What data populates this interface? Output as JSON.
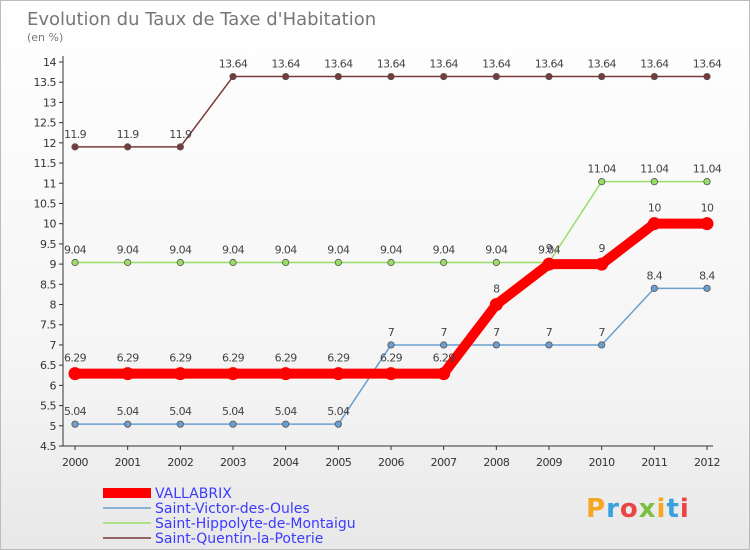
{
  "chart_data": {
    "type": "line",
    "title": "Evolution du Taux de Taxe d'Habitation",
    "subtitle": "(en %)",
    "x": [
      "2000",
      "2001",
      "2002",
      "2003",
      "2004",
      "2005",
      "2006",
      "2007",
      "2008",
      "2009",
      "2010",
      "2011",
      "2012"
    ],
    "ylim": [
      4.5,
      14
    ],
    "y_ticks": [
      "4.5",
      "5",
      "5.5",
      "6",
      "6.5",
      "7",
      "7.5",
      "8",
      "8.5",
      "9",
      "9.5",
      "10",
      "10.5",
      "11",
      "11.5",
      "12",
      "12.5",
      "13",
      "13.5",
      "14"
    ],
    "grid": false,
    "legend_position": "bottom-left",
    "series": [
      {
        "name": "VALLABRIX",
        "color": "#ff0000",
        "values": [
          6.29,
          6.29,
          6.29,
          6.29,
          6.29,
          6.29,
          6.29,
          6.29,
          8,
          9,
          9,
          10,
          10
        ],
        "labels": [
          "6.29",
          "6.29",
          "6.29",
          "6.29",
          "6.29",
          "6.29",
          "6.29",
          "6.29",
          "8",
          "9",
          "9",
          "10",
          "10"
        ]
      },
      {
        "name": "Saint-Victor-des-Oules",
        "color": "#6b9fd0",
        "values": [
          5.04,
          5.04,
          5.04,
          5.04,
          5.04,
          5.04,
          7,
          7,
          7,
          7,
          7,
          8.4,
          8.4
        ],
        "labels": [
          "5.04",
          "5.04",
          "5.04",
          "5.04",
          "5.04",
          "5.04",
          "7",
          "7",
          "7",
          "7",
          "7",
          "8.4",
          "8.4"
        ]
      },
      {
        "name": "Saint-Hippolyte-de-Montaigu",
        "color": "#99dd66",
        "values": [
          9.04,
          9.04,
          9.04,
          9.04,
          9.04,
          9.04,
          9.04,
          9.04,
          9.04,
          9.04,
          11.04,
          11.04,
          11.04
        ],
        "labels": [
          "9.04",
          "9.04",
          "9.04",
          "9.04",
          "9.04",
          "9.04",
          "9.04",
          "9.04",
          "9.04",
          "9.04",
          "11.04",
          "11.04",
          "11.04"
        ]
      },
      {
        "name": "Saint-Quentin-la-Poterie",
        "color": "#7a3a3a",
        "values": [
          11.9,
          11.9,
          11.9,
          13.64,
          13.64,
          13.64,
          13.64,
          13.64,
          13.64,
          13.64,
          13.64,
          13.64,
          13.64
        ],
        "labels": [
          "11.9",
          "11.9",
          "11.9",
          "13.64",
          "13.64",
          "13.64",
          "13.64",
          "13.64",
          "13.64",
          "13.64",
          "13.64",
          "13.64",
          "13.64"
        ]
      }
    ]
  },
  "logo": {
    "letters": [
      "P",
      "r",
      "o",
      "x",
      "i",
      "t",
      "i"
    ],
    "colors": [
      "#f5a623",
      "#3aa0e0",
      "#e84545",
      "#7ac143",
      "#f5a623",
      "#3aa0e0",
      "#e84545"
    ]
  }
}
